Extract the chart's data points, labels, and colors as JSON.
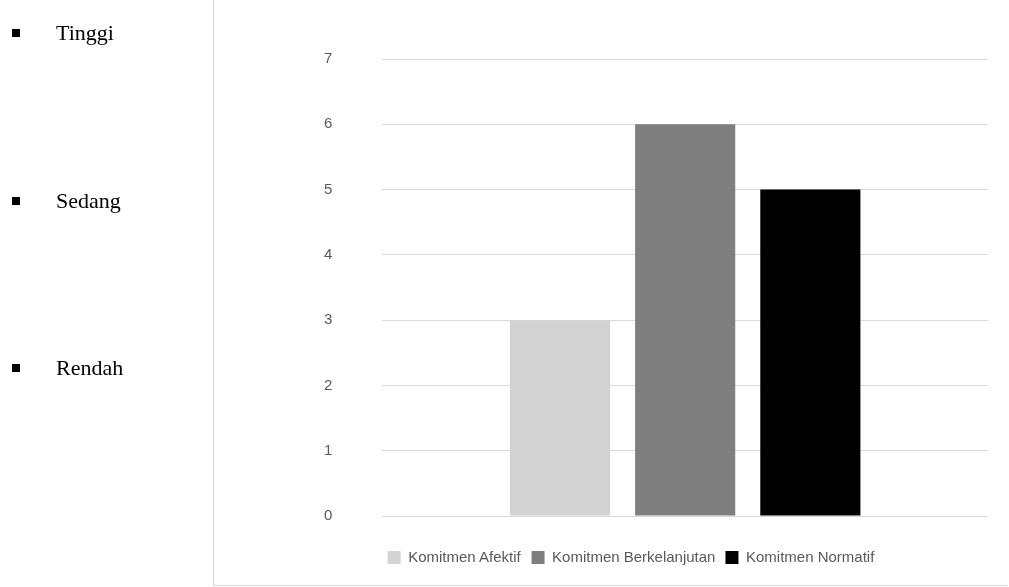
{
  "chart_data": {
    "type": "bar",
    "categories": [
      null
    ],
    "series": [
      {
        "name": "Komitmen Afektif",
        "color": "#d3d3d3",
        "values": [
          3
        ]
      },
      {
        "name": "Komitmen Berkelanjutan",
        "color": "#7f7f7f",
        "values": [
          6
        ]
      },
      {
        "name": "Komitmen Normatif",
        "color": "#000000",
        "values": [
          5
        ]
      }
    ],
    "ylim": [
      0,
      7
    ],
    "yticks": [
      0,
      1,
      2,
      3,
      4,
      5,
      6,
      7
    ],
    "grid": "y",
    "legend": "bottom",
    "annotations": [
      "Tinggi",
      "Sedang",
      "Rendah"
    ]
  }
}
